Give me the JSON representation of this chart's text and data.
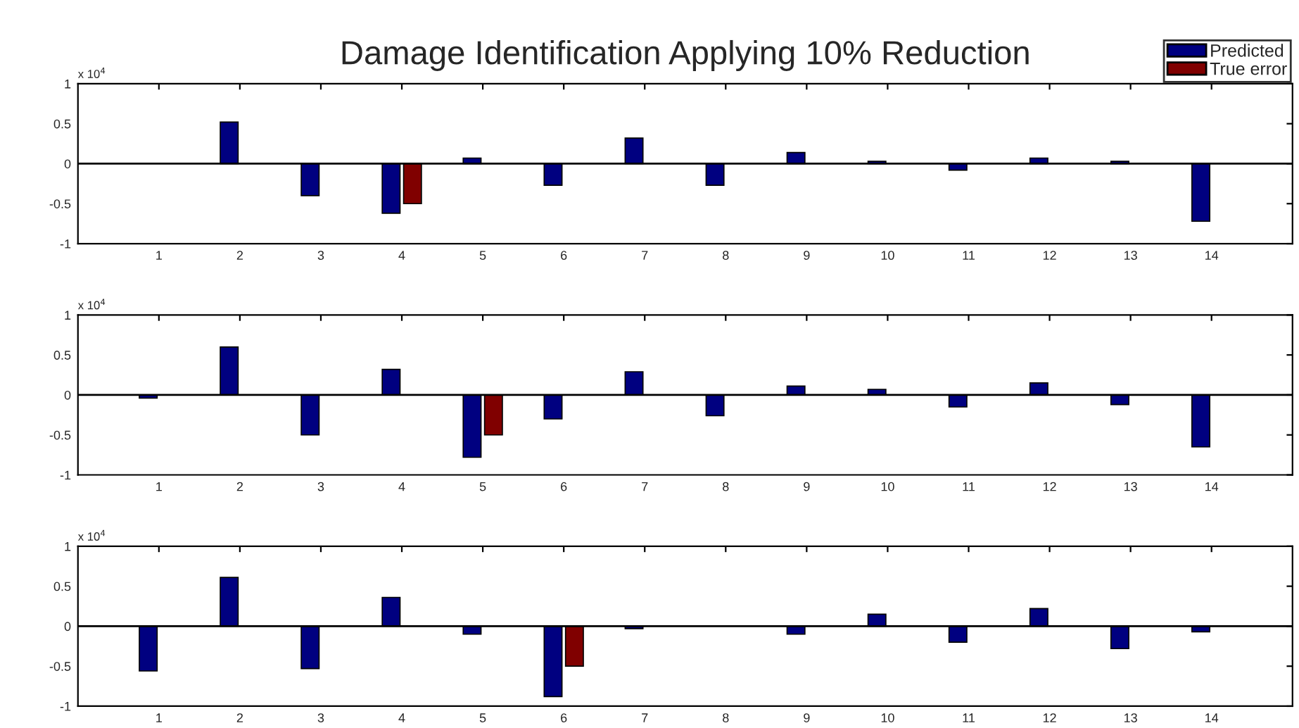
{
  "chart_data": [
    {
      "type": "bar",
      "title": "Damage Identification Applying 10% Reduction",
      "categories": [
        "1",
        "2",
        "3",
        "4",
        "5",
        "6",
        "7",
        "8",
        "9",
        "10",
        "11",
        "12",
        "13",
        "14"
      ],
      "ylim": [
        -1,
        1
      ],
      "yticks": [
        -1,
        -0.5,
        0,
        0.5,
        1
      ],
      "legend": "top right",
      "annotations": [
        "x 10$^{4}$"
      ],
      "ref_lines": [
        {
          "axis": "y",
          "value": 0,
          "color": "#000000"
        }
      ],
      "series": [
        {
          "name": "Predicted",
          "color": "#000080",
          "values": [
            null,
            0.52,
            -0.4,
            -0.62,
            0.07,
            -0.27,
            0.32,
            -0.27,
            0.14,
            0.03,
            -0.08,
            0.07,
            0.03,
            -0.72
          ]
        },
        {
          "name": "True error",
          "color": "#800000",
          "values": [
            null,
            null,
            null,
            -0.5,
            null,
            null,
            null,
            null,
            null,
            null,
            null,
            null,
            null,
            null
          ]
        }
      ]
    },
    {
      "type": "bar",
      "categories": [
        "1",
        "2",
        "3",
        "4",
        "5",
        "6",
        "7",
        "8",
        "9",
        "10",
        "11",
        "12",
        "13",
        "14"
      ],
      "ylim": [
        -1,
        1
      ],
      "yticks": [
        -1,
        -0.5,
        0,
        0.5,
        1
      ],
      "annotations": [
        "x 10$^{4}$"
      ],
      "ref_lines": [
        {
          "axis": "y",
          "value": 0,
          "color": "#000000"
        }
      ],
      "series": [
        {
          "color": "#000080",
          "values": [
            -0.04,
            0.6,
            -0.5,
            0.32,
            -0.78,
            -0.3,
            0.29,
            -0.26,
            0.11,
            0.07,
            -0.15,
            0.15,
            -0.12,
            -0.65
          ]
        },
        {
          "color": "#800000",
          "values": [
            null,
            null,
            null,
            null,
            -0.5,
            null,
            null,
            null,
            null,
            null,
            null,
            null,
            null,
            null
          ]
        }
      ]
    },
    {
      "type": "bar",
      "categories": [
        "1",
        "2",
        "3",
        "4",
        "5",
        "6",
        "7",
        "8",
        "9",
        "10",
        "11",
        "12",
        "13",
        "14"
      ],
      "ylim": [
        -1,
        1
      ],
      "yticks": [
        -1,
        -0.5,
        0,
        0.5,
        1
      ],
      "annotations": [
        "x 10$^{4}$"
      ],
      "ref_lines": [
        {
          "axis": "y",
          "value": 0,
          "color": "#000000"
        }
      ],
      "series": [
        {
          "color": "#000080",
          "values": [
            -0.56,
            0.61,
            -0.53,
            0.36,
            -0.1,
            -0.88,
            -0.03,
            null,
            -0.1,
            0.15,
            -0.2,
            0.22,
            -0.28,
            -0.07
          ]
        },
        {
          "color": "#800000",
          "values": [
            null,
            null,
            null,
            null,
            null,
            -0.5,
            null,
            null,
            null,
            null,
            null,
            null,
            null,
            null
          ]
        }
      ]
    }
  ]
}
